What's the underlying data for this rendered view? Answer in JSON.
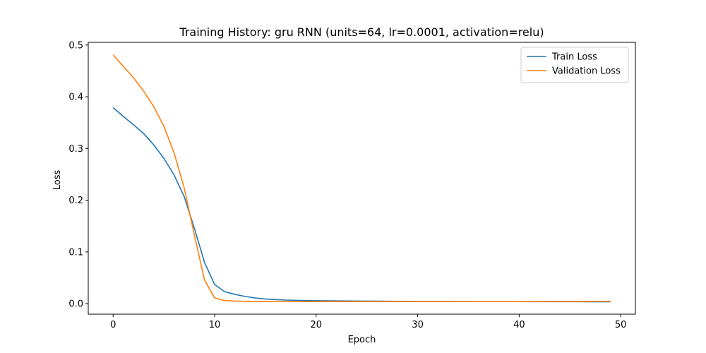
{
  "chart_data": {
    "type": "line",
    "title": "Training History: gru RNN (units=64, lr=0.0001, activation=relu)",
    "xlabel": "Epoch",
    "ylabel": "Loss",
    "xlim": [
      -2.45,
      51.45
    ],
    "ylim": [
      -0.0203,
      0.5052
    ],
    "xticks": [
      0,
      10,
      20,
      30,
      40,
      50
    ],
    "yticks": [
      0.0,
      0.1,
      0.2,
      0.3,
      0.4,
      0.5
    ],
    "ytick_labels": [
      "0.0",
      "0.1",
      "0.2",
      "0.3",
      "0.4",
      "0.5"
    ],
    "grid": false,
    "legend_position": "top-right",
    "series": [
      {
        "name": "Train Loss",
        "color": "#1f77b4",
        "values": [
          0.379,
          0.362,
          0.346,
          0.329,
          0.307,
          0.281,
          0.249,
          0.207,
          0.146,
          0.08,
          0.037,
          0.023,
          0.018,
          0.014,
          0.011,
          0.009,
          0.008,
          0.007,
          0.0065,
          0.006,
          0.0058,
          0.0056,
          0.0054,
          0.0052,
          0.005,
          0.0049,
          0.0048,
          0.0047,
          0.0046,
          0.0045,
          0.0044,
          0.0044,
          0.0043,
          0.0043,
          0.0042,
          0.0042,
          0.0041,
          0.0041,
          0.004,
          0.004,
          0.004,
          0.0039,
          0.0039,
          0.0039,
          0.0038,
          0.0038,
          0.0038,
          0.0037,
          0.0037,
          0.0037
        ]
      },
      {
        "name": "Validation Loss",
        "color": "#ff7f0e",
        "values": [
          0.481,
          0.459,
          0.437,
          0.411,
          0.381,
          0.343,
          0.292,
          0.224,
          0.133,
          0.046,
          0.011,
          0.006,
          0.005,
          0.0045,
          0.004,
          0.004,
          0.004,
          0.004,
          0.004,
          0.004,
          0.004,
          0.004,
          0.004,
          0.004,
          0.004,
          0.004,
          0.004,
          0.004,
          0.004,
          0.004,
          0.004,
          0.004,
          0.004,
          0.004,
          0.004,
          0.004,
          0.004,
          0.004,
          0.004,
          0.004,
          0.004,
          0.0042,
          0.0042,
          0.0043,
          0.0043,
          0.0044,
          0.0044,
          0.0045,
          0.0045,
          0.0045
        ]
      }
    ]
  }
}
